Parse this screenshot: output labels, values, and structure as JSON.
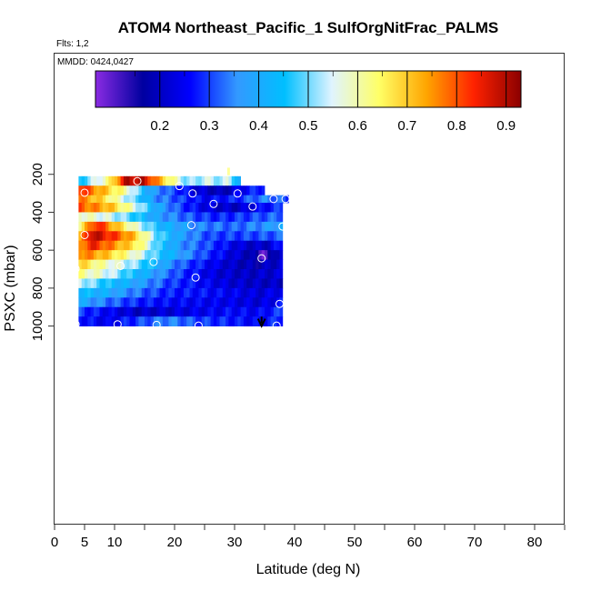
{
  "chart_data": {
    "type": "heatmap",
    "title": "ATOM4 Northeast_Pacific_1 SulfOrgNitFrac_PALMS",
    "flights_text": "Flts: 1,2",
    "mmdd_text": "MMDD: 0424,0427",
    "xlabel": "Latitude (deg N)",
    "ylabel": "PSXC (mbar)",
    "xlim": [
      0,
      85
    ],
    "ylim": [
      1000,
      0
    ],
    "x_ticks": [
      0,
      5,
      10,
      20,
      30,
      40,
      50,
      60,
      70,
      80
    ],
    "y_ticks": [
      200,
      400,
      600,
      800,
      1000
    ],
    "colorbar": {
      "range": [
        0.07,
        0.93
      ],
      "ticks": [
        0.2,
        0.3,
        0.4,
        0.5,
        0.6,
        0.7,
        0.8,
        0.9
      ],
      "colors": [
        "#8a2be2",
        "#0000a0",
        "#0000ff",
        "#3399ff",
        "#00bfff",
        "#e0f4ff",
        "#ffff66",
        "#ffa500",
        "#ff2200",
        "#8b0000"
      ]
    },
    "series_note": "",
    "bands": [
      {
        "p_top": 210,
        "p_bot": 260,
        "lat_start": 4,
        "lat_end": 31,
        "profile": [
          [
            4,
            0.45
          ],
          [
            9,
            0.62
          ],
          [
            12,
            0.9
          ],
          [
            15,
            0.88
          ],
          [
            18,
            0.7
          ],
          [
            22,
            0.5
          ],
          [
            26,
            0.55
          ],
          [
            28,
            0.5
          ],
          [
            29,
            0.58
          ],
          [
            31,
            0.35
          ]
        ]
      },
      {
        "p_top": 260,
        "p_bot": 310,
        "lat_start": 4,
        "lat_end": 35,
        "profile": [
          [
            4,
            0.85
          ],
          [
            7,
            0.75
          ],
          [
            12,
            0.6
          ],
          [
            16,
            0.38
          ],
          [
            20,
            0.3
          ],
          [
            24,
            0.22
          ],
          [
            28,
            0.18
          ],
          [
            31,
            0.25
          ],
          [
            35,
            0.3
          ]
        ]
      },
      {
        "p_top": 310,
        "p_bot": 350,
        "lat_start": 4,
        "lat_end": 39,
        "profile": [
          [
            4,
            0.78
          ],
          [
            8,
            0.68
          ],
          [
            13,
            0.5
          ],
          [
            17,
            0.35
          ],
          [
            21,
            0.3
          ],
          [
            25,
            0.25
          ],
          [
            30,
            0.28
          ],
          [
            35,
            0.35
          ],
          [
            39,
            0.3
          ]
        ]
      },
      {
        "p_top": 350,
        "p_bot": 400,
        "lat_start": 4,
        "lat_end": 38,
        "profile": [
          [
            4,
            0.8
          ],
          [
            9,
            0.72
          ],
          [
            13,
            0.58
          ],
          [
            17,
            0.4
          ],
          [
            21,
            0.3
          ],
          [
            26,
            0.22
          ],
          [
            30,
            0.2
          ],
          [
            34,
            0.25
          ],
          [
            38,
            0.3
          ]
        ]
      },
      {
        "p_top": 400,
        "p_bot": 450,
        "lat_start": 4,
        "lat_end": 38,
        "profile": [
          [
            4,
            0.6
          ],
          [
            9,
            0.55
          ],
          [
            13,
            0.48
          ],
          [
            17,
            0.38
          ],
          [
            22,
            0.32
          ],
          [
            27,
            0.28
          ],
          [
            32,
            0.3
          ],
          [
            38,
            0.33
          ]
        ]
      },
      {
        "p_top": 450,
        "p_bot": 500,
        "lat_start": 4,
        "lat_end": 38,
        "profile": [
          [
            4,
            0.62
          ],
          [
            7,
            0.85
          ],
          [
            10,
            0.72
          ],
          [
            14,
            0.55
          ],
          [
            18,
            0.42
          ],
          [
            24,
            0.35
          ],
          [
            30,
            0.32
          ],
          [
            35,
            0.36
          ],
          [
            38,
            0.4
          ]
        ]
      },
      {
        "p_top": 500,
        "p_bot": 550,
        "lat_start": 4,
        "lat_end": 38,
        "profile": [
          [
            4,
            0.68
          ],
          [
            6,
            0.9
          ],
          [
            10,
            0.82
          ],
          [
            13,
            0.72
          ],
          [
            17,
            0.5
          ],
          [
            21,
            0.38
          ],
          [
            26,
            0.3
          ],
          [
            31,
            0.3
          ],
          [
            38,
            0.32
          ]
        ]
      },
      {
        "p_top": 550,
        "p_bot": 600,
        "lat_start": 4,
        "lat_end": 38,
        "profile": [
          [
            4,
            0.72
          ],
          [
            6,
            0.85
          ],
          [
            10,
            0.75
          ],
          [
            14,
            0.65
          ],
          [
            17,
            0.48
          ],
          [
            21,
            0.36
          ],
          [
            26,
            0.3
          ],
          [
            31,
            0.22
          ],
          [
            35,
            0.2
          ],
          [
            38,
            0.28
          ]
        ]
      },
      {
        "p_top": 600,
        "p_bot": 650,
        "lat_start": 4,
        "lat_end": 38,
        "profile": [
          [
            4,
            0.78
          ],
          [
            8,
            0.72
          ],
          [
            12,
            0.62
          ],
          [
            16,
            0.5
          ],
          [
            20,
            0.4
          ],
          [
            25,
            0.3
          ],
          [
            30,
            0.22
          ],
          [
            33,
            0.18
          ],
          [
            35,
            0.1
          ],
          [
            38,
            0.25
          ]
        ]
      },
      {
        "p_top": 650,
        "p_bot": 700,
        "lat_start": 4,
        "lat_end": 38,
        "profile": [
          [
            4,
            0.7
          ],
          [
            8,
            0.6
          ],
          [
            13,
            0.52
          ],
          [
            17,
            0.42
          ],
          [
            21,
            0.32
          ],
          [
            26,
            0.25
          ],
          [
            30,
            0.2
          ],
          [
            34,
            0.18
          ],
          [
            38,
            0.22
          ]
        ]
      },
      {
        "p_top": 700,
        "p_bot": 750,
        "lat_start": 4,
        "lat_end": 38,
        "profile": [
          [
            4,
            0.62
          ],
          [
            9,
            0.55
          ],
          [
            13,
            0.45
          ],
          [
            18,
            0.35
          ],
          [
            22,
            0.28
          ],
          [
            27,
            0.22
          ],
          [
            32,
            0.2
          ],
          [
            38,
            0.22
          ]
        ]
      },
      {
        "p_top": 750,
        "p_bot": 800,
        "lat_start": 4,
        "lat_end": 38,
        "profile": [
          [
            4,
            0.55
          ],
          [
            9,
            0.45
          ],
          [
            14,
            0.38
          ],
          [
            19,
            0.3
          ],
          [
            24,
            0.26
          ],
          [
            29,
            0.22
          ],
          [
            34,
            0.2
          ],
          [
            38,
            0.2
          ]
        ]
      },
      {
        "p_top": 800,
        "p_bot": 850,
        "lat_start": 4,
        "lat_end": 38,
        "profile": [
          [
            4,
            0.45
          ],
          [
            9,
            0.4
          ],
          [
            14,
            0.33
          ],
          [
            19,
            0.28
          ],
          [
            24,
            0.27
          ],
          [
            29,
            0.25
          ],
          [
            34,
            0.22
          ],
          [
            38,
            0.25
          ]
        ]
      },
      {
        "p_top": 850,
        "p_bot": 900,
        "lat_start": 4,
        "lat_end": 38,
        "profile": [
          [
            4,
            0.4
          ],
          [
            9,
            0.33
          ],
          [
            14,
            0.28
          ],
          [
            19,
            0.26
          ],
          [
            24,
            0.25
          ],
          [
            29,
            0.24
          ],
          [
            34,
            0.22
          ],
          [
            38,
            0.26
          ]
        ]
      },
      {
        "p_top": 900,
        "p_bot": 950,
        "lat_start": 4,
        "lat_end": 38,
        "profile": [
          [
            4,
            0.3
          ],
          [
            9,
            0.25
          ],
          [
            14,
            0.2
          ],
          [
            19,
            0.22
          ],
          [
            24,
            0.24
          ],
          [
            29,
            0.26
          ],
          [
            34,
            0.25
          ],
          [
            38,
            0.3
          ]
        ]
      },
      {
        "p_top": 950,
        "p_bot": 1000,
        "lat_start": 4,
        "lat_end": 38,
        "profile": [
          [
            4,
            0.28
          ],
          [
            9,
            0.24
          ],
          [
            14,
            0.3
          ],
          [
            19,
            0.35
          ],
          [
            24,
            0.3
          ],
          [
            29,
            0.28
          ],
          [
            34,
            0.25
          ],
          [
            38,
            0.3
          ]
        ]
      }
    ],
    "markers": [
      [
        13.8,
        236
      ],
      [
        20.8,
        262
      ],
      [
        5.0,
        297
      ],
      [
        23.0,
        301
      ],
      [
        30.5,
        301
      ],
      [
        36.5,
        330
      ],
      [
        38.5,
        330
      ],
      [
        26.5,
        356
      ],
      [
        33.0,
        370
      ],
      [
        22.8,
        468
      ],
      [
        38.0,
        475
      ],
      [
        5.0,
        520
      ],
      [
        11.0,
        683
      ],
      [
        16.5,
        662
      ],
      [
        34.5,
        643
      ],
      [
        3.5,
        698
      ],
      [
        23.5,
        744
      ],
      [
        37.5,
        883
      ],
      [
        3.5,
        991
      ],
      [
        10.5,
        991
      ],
      [
        17.0,
        994
      ],
      [
        24.0,
        998
      ],
      [
        37.0,
        998
      ]
    ],
    "highlight_bar": {
      "lat": 29.0,
      "p_top": 165,
      "p_bot": 205
    },
    "arrow": {
      "lat": 34.5,
      "p_top": 950,
      "p_bot": 1000
    }
  }
}
